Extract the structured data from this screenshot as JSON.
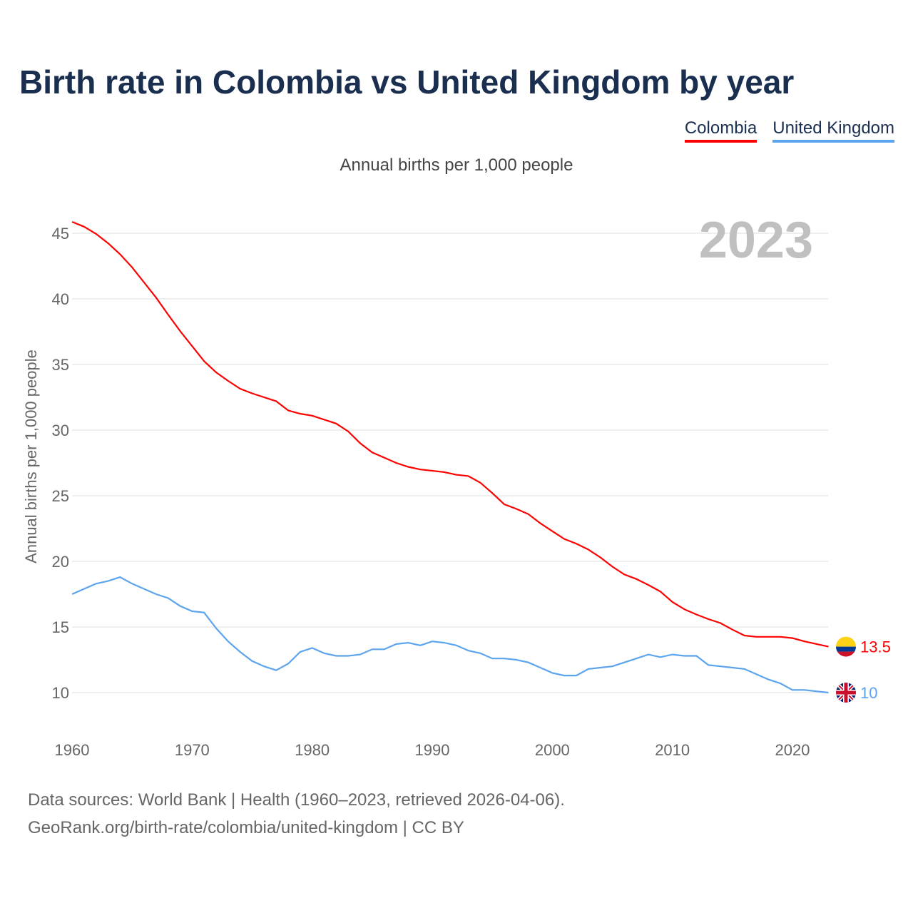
{
  "title": "Birth rate in Colombia vs United Kingdom by year",
  "subtitle": "Annual births per 1,000 people",
  "source_line1": "Data sources: World Bank | Health (1960–2023, retrieved 2026-04-06).",
  "source_line2": "GeoRank.org/birth-rate/colombia/united-kingdom | CC BY",
  "chart_data": {
    "type": "line",
    "title": "Birth rate in Colombia vs United Kingdom by year",
    "ylabel": "Annual births per 1,000 people",
    "xlabel": "",
    "year_label": "2023",
    "xlim": [
      1960,
      2023
    ],
    "ylim": [
      8,
      46
    ],
    "yticks": [
      10,
      15,
      20,
      25,
      30,
      35,
      40,
      45
    ],
    "xticks": [
      1960,
      1970,
      1980,
      1990,
      2000,
      2010,
      2020
    ],
    "legend_position": "top-right",
    "x_start": 1960,
    "series": [
      {
        "name": "Colombia",
        "color": "#ff0000",
        "end_label": "13.5",
        "flag": "colombia-flag",
        "values": [
          45.87,
          45.5,
          44.95,
          44.24,
          43.4,
          42.4,
          41.25,
          40.1,
          38.8,
          37.55,
          36.4,
          35.25,
          34.4,
          33.75,
          33.15,
          32.8,
          32.5,
          32.2,
          31.5,
          31.25,
          31.1,
          30.8,
          30.5,
          29.9,
          29.0,
          28.3,
          27.9,
          27.5,
          27.2,
          27.0,
          26.9,
          26.8,
          26.6,
          26.5,
          26.0,
          25.2,
          24.35,
          24.0,
          23.6,
          22.9,
          22.3,
          21.7,
          21.35,
          20.9,
          20.3,
          19.6,
          19.0,
          18.65,
          18.2,
          17.7,
          16.9,
          16.35,
          15.95,
          15.6,
          15.3,
          14.8,
          14.35,
          14.25,
          14.25,
          14.25,
          14.15,
          13.9,
          13.7,
          13.5
        ]
      },
      {
        "name": "United Kingdom",
        "color": "#5ba4ee",
        "end_label": "10",
        "flag": "uk-flag",
        "values": [
          17.5,
          17.9,
          18.3,
          18.5,
          18.8,
          18.3,
          17.9,
          17.5,
          17.2,
          16.6,
          16.2,
          16.1,
          14.9,
          13.9,
          13.1,
          12.4,
          12.0,
          11.7,
          12.2,
          13.1,
          13.4,
          13.0,
          12.8,
          12.8,
          12.9,
          13.3,
          13.3,
          13.7,
          13.8,
          13.6,
          13.9,
          13.8,
          13.6,
          13.2,
          13.0,
          12.6,
          12.6,
          12.5,
          12.3,
          11.9,
          11.5,
          11.3,
          11.3,
          11.8,
          11.9,
          12.0,
          12.3,
          12.6,
          12.9,
          12.7,
          12.9,
          12.8,
          12.8,
          12.1,
          12.0,
          11.9,
          11.8,
          11.4,
          11.0,
          10.7,
          10.2,
          10.2,
          10.1,
          10.0
        ]
      }
    ]
  }
}
